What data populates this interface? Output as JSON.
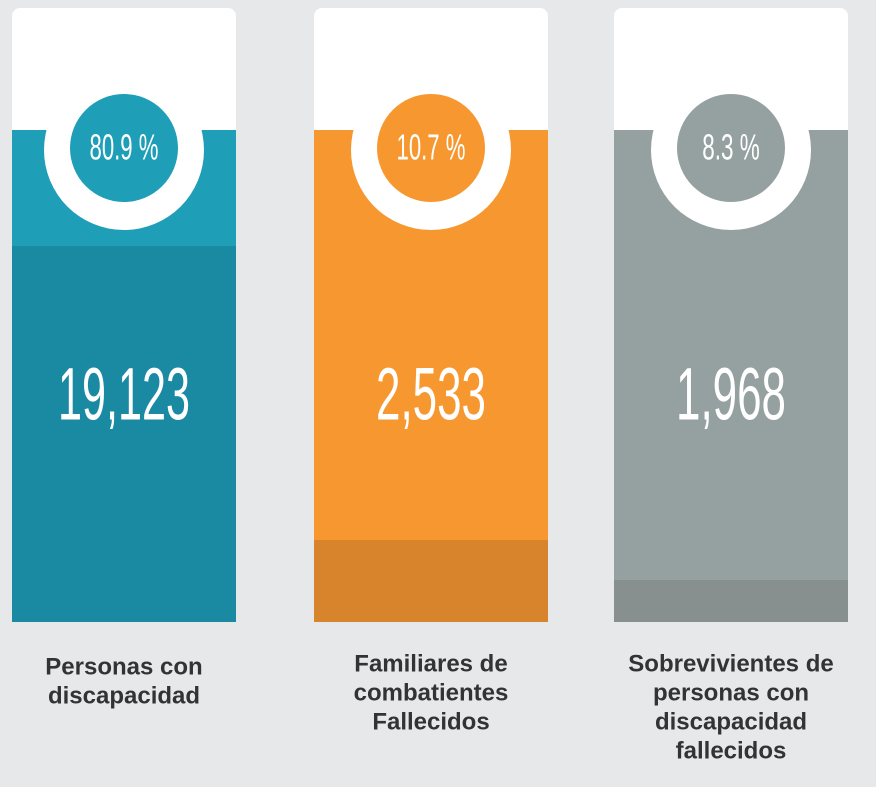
{
  "items": [
    {
      "percent": "80.9 %",
      "count": "19,123",
      "label": [
        "Personas con",
        "discapacidad"
      ]
    },
    {
      "percent": "10.7 %",
      "count": "2,533",
      "label": [
        "Familiares de",
        "combatientes",
        "Fallecidos"
      ]
    },
    {
      "percent": "8.3 %",
      "count": "1,968",
      "label": [
        "Sobrevivientes de",
        "personas con",
        "discapacidad",
        "fallecidos"
      ]
    }
  ]
}
